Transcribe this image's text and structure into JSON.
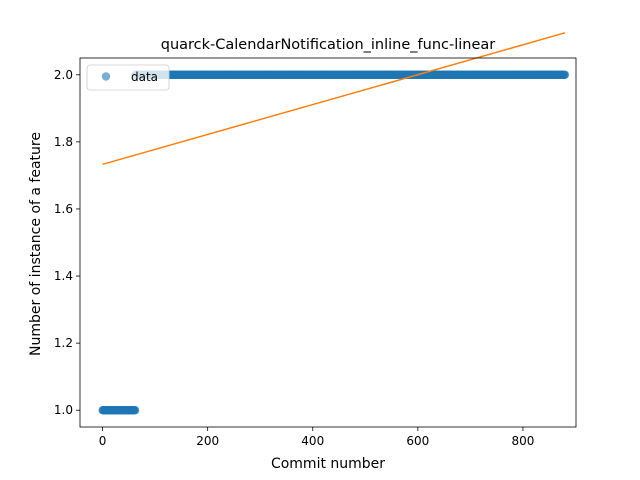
{
  "chart_data": {
    "type": "scatter",
    "title": "quarck-CalendarNotification_inline_func-linear",
    "xlabel": "Commit number",
    "ylabel": "Number of instance of a feature",
    "xlim": [
      -43,
      901
    ],
    "ylim": [
      0.95,
      2.05
    ],
    "xticks": [
      0,
      200,
      400,
      600,
      800
    ],
    "yticks": [
      1.0,
      1.2,
      1.4,
      1.6,
      1.8,
      2.0
    ],
    "xtick_labels": [
      "0",
      "200",
      "400",
      "600",
      "800"
    ],
    "ytick_labels": [
      "1.0",
      "1.2",
      "1.4",
      "1.6",
      "1.8",
      "2.0"
    ],
    "grid": false,
    "legend_position": "top-left",
    "series": [
      {
        "name": "data",
        "kind": "scatter",
        "color": "#1f77b4",
        "segments": [
          {
            "x_start": 0,
            "x_end": 62,
            "y": 1.0
          },
          {
            "x_start": 62,
            "x_end": 880,
            "y": 2.0
          }
        ]
      },
      {
        "kind": "line",
        "color": "#ff7f0e",
        "x": [
          0,
          880
        ],
        "y": [
          1.733,
          2.125
        ]
      }
    ]
  }
}
